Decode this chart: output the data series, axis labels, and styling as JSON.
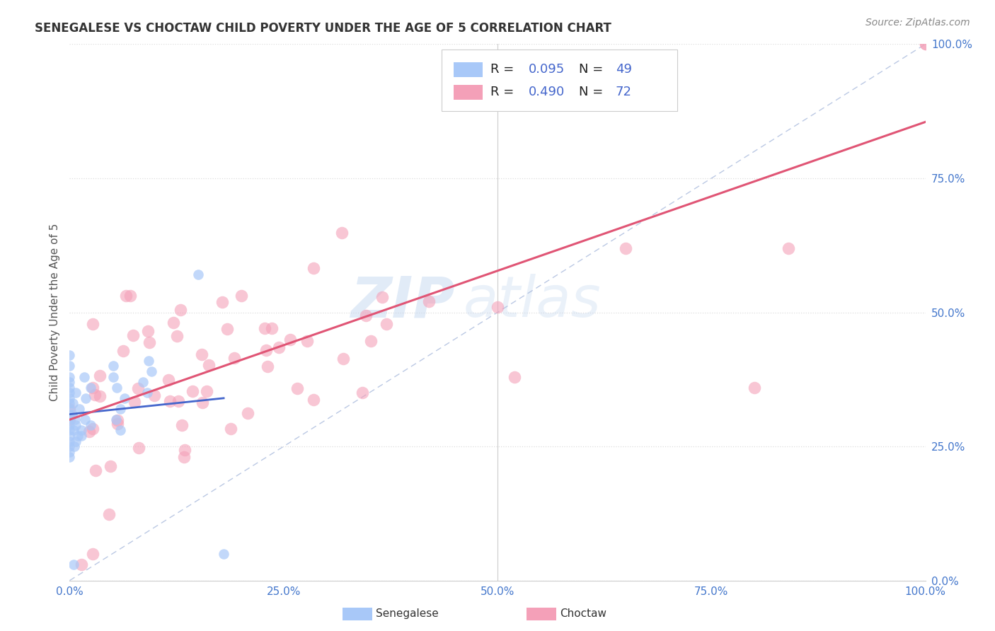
{
  "title": "SENEGALESE VS CHOCTAW CHILD POVERTY UNDER THE AGE OF 5 CORRELATION CHART",
  "source_text": "Source: ZipAtlas.com",
  "ylabel": "Child Poverty Under the Age of 5",
  "watermark_zip": "ZIP",
  "watermark_atlas": "atlas",
  "senegalese_color": "#a8c8f8",
  "choctaw_color": "#f4a0b8",
  "senegalese_line_color": "#4466cc",
  "choctaw_line_color": "#e05575",
  "dashed_line_color": "#aabbdd",
  "title_color": "#333333",
  "tick_label_color": "#4477cc",
  "background_color": "#ffffff",
  "grid_color": "#dddddd",
  "sen_R": "0.095",
  "sen_N": "49",
  "cho_R": "0.490",
  "cho_N": "72",
  "xticks": [
    0.0,
    0.25,
    0.5,
    0.75,
    1.0
  ],
  "xlabels": [
    "0.0%",
    "25.0%",
    "50.0%",
    "75.0%",
    "100.0%"
  ],
  "yticks": [
    0.0,
    0.25,
    0.5,
    0.75,
    1.0
  ],
  "ylabels": [
    "0.0%",
    "25.0%",
    "50.0%",
    "75.0%",
    "100.0%"
  ],
  "sen_line_x": [
    0.0,
    0.18
  ],
  "sen_line_y_start": 0.31,
  "sen_line_y_end": 0.34,
  "cho_line_x": [
    0.0,
    1.0
  ],
  "cho_line_y_start": 0.3,
  "cho_line_y_end": 0.855
}
